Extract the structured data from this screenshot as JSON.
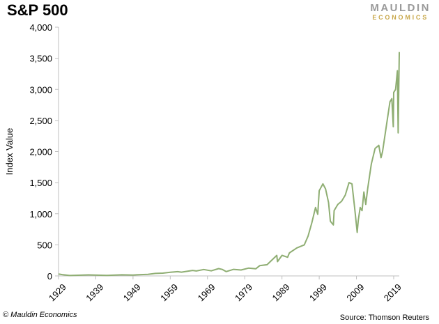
{
  "header": {
    "title": "S&P 500",
    "brand_top": "MAULDIN",
    "brand_bottom": "ECONOMICS"
  },
  "footer": {
    "copyright": "© Mauldin Economics",
    "source": "Source: Thomson Reuters"
  },
  "colors": {
    "line": "#8fae73",
    "axis": "#bfbfbf",
    "text": "#000000"
  },
  "chart_data": {
    "type": "line",
    "title": "S&P 500",
    "xlabel": "",
    "ylabel": "Index Value",
    "xlim": [
      1929,
      2020.5
    ],
    "ylim": [
      0,
      4000
    ],
    "x_ticks": [
      1929,
      1939,
      1949,
      1959,
      1969,
      1979,
      1989,
      1999,
      2009,
      2019
    ],
    "y_ticks": [
      0,
      500,
      1000,
      1500,
      2000,
      2500,
      3000,
      3500,
      4000
    ],
    "y_tick_labels": [
      "0",
      "500",
      "1,000",
      "1,500",
      "2,000",
      "2,500",
      "3,000",
      "3,500",
      "4,000"
    ],
    "grid": false,
    "series": [
      {
        "x": [
          1929,
          1930,
          1932,
          1935,
          1937,
          1942,
          1946,
          1949,
          1950,
          1953,
          1955,
          1957,
          1959,
          1961,
          1962,
          1965,
          1966,
          1968,
          1970,
          1972,
          1973,
          1974,
          1976,
          1978,
          1980,
          1981,
          1982,
          1983,
          1985,
          1987.6,
          1987.8,
          1989,
          1990.5,
          1991,
          1993,
          1995,
          1996,
          1997,
          1998,
          1998.6,
          1999,
          2000,
          2000.7,
          2001.5,
          2002,
          2002.8,
          2003,
          2004,
          2005,
          2006,
          2007,
          2007.8,
          2008.5,
          2009.2,
          2009.5,
          2010,
          2010.5,
          2011,
          2011.5,
          2012,
          2013,
          2014,
          2015,
          2015.6,
          2016,
          2017,
          2018,
          2018.5,
          2018.9,
          2019,
          2019.5,
          2020,
          2020.2,
          2020.5
        ],
        "y": [
          30,
          21,
          7,
          12,
          17,
          9,
          18,
          15,
          18,
          25,
          40,
          45,
          58,
          68,
          60,
          88,
          80,
          103,
          82,
          118,
          104,
          70,
          105,
          95,
          125,
          120,
          115,
          165,
          180,
          330,
          230,
          330,
          300,
          370,
          450,
          500,
          640,
          850,
          1100,
          990,
          1370,
          1480,
          1400,
          1180,
          880,
          820,
          1050,
          1150,
          1200,
          1300,
          1500,
          1480,
          1100,
          700,
          900,
          1100,
          1050,
          1350,
          1150,
          1400,
          1800,
          2050,
          2100,
          1900,
          2000,
          2400,
          2800,
          2850,
          2400,
          2950,
          3000,
          3300,
          2300,
          3600
        ]
      }
    ]
  }
}
